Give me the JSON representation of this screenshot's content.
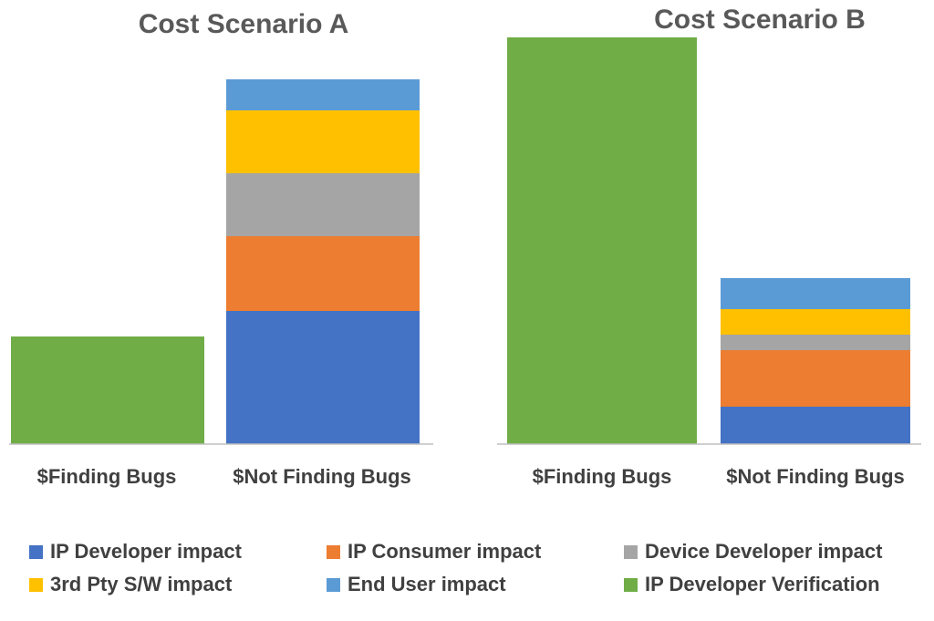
{
  "chart_data": [
    {
      "type": "bar",
      "stacked": true,
      "title": "Cost Scenario A",
      "categories": [
        "$Finding Bugs",
        "$Not Finding Bugs"
      ],
      "series": [
        {
          "name": "IP Developer impact",
          "values": [
            0,
            146
          ]
        },
        {
          "name": "IP Consumer impact",
          "values": [
            0,
            82
          ]
        },
        {
          "name": "Device Developer impact",
          "values": [
            0,
            69
          ]
        },
        {
          "name": "3rd Pty S/W impact",
          "values": [
            0,
            69
          ]
        },
        {
          "name": "End User impact",
          "values": [
            0,
            34
          ]
        },
        {
          "name": "IP Developer Verification",
          "values": [
            118,
            0
          ]
        }
      ],
      "ylim": [
        0,
        450
      ],
      "grid": false,
      "legend": "bottom"
    },
    {
      "type": "bar",
      "stacked": true,
      "title": "Cost Scenario B",
      "categories": [
        "$Finding Bugs",
        "$Not Finding Bugs"
      ],
      "series": [
        {
          "name": "IP Developer impact",
          "values": [
            0,
            41
          ]
        },
        {
          "name": "IP Consumer impact",
          "values": [
            0,
            62
          ]
        },
        {
          "name": "Device Developer impact",
          "values": [
            0,
            17
          ]
        },
        {
          "name": "3rd Pty S/W impact",
          "values": [
            0,
            28
          ]
        },
        {
          "name": "End User impact",
          "values": [
            0,
            34
          ]
        },
        {
          "name": "IP Developer Verification",
          "values": [
            446,
            0
          ]
        }
      ],
      "ylim": [
        0,
        450
      ],
      "grid": false,
      "legend": "bottom"
    }
  ],
  "colors": {
    "IP Developer impact": "#4472C4",
    "IP Consumer impact": "#ED7D31",
    "Device Developer impact": "#A5A5A5",
    "3rd Pty S/W impact": "#FFC000",
    "End User impact": "#5B9BD5",
    "IP Developer Verification": "#70AD47",
    "axis": "#BFBFBF"
  },
  "legend": {
    "items": [
      {
        "name": "IP Developer impact",
        "color": "#4472C4"
      },
      {
        "name": "IP Consumer impact",
        "color": "#ED7D31"
      },
      {
        "name": "Device Developer impact",
        "color": "#A5A5A5"
      },
      {
        "name": "3rd Pty S/W impact",
        "color": "#FFC000"
      },
      {
        "name": "End User impact",
        "color": "#5B9BD5"
      },
      {
        "name": "IP Developer Verification",
        "color": "#70AD47"
      }
    ]
  }
}
